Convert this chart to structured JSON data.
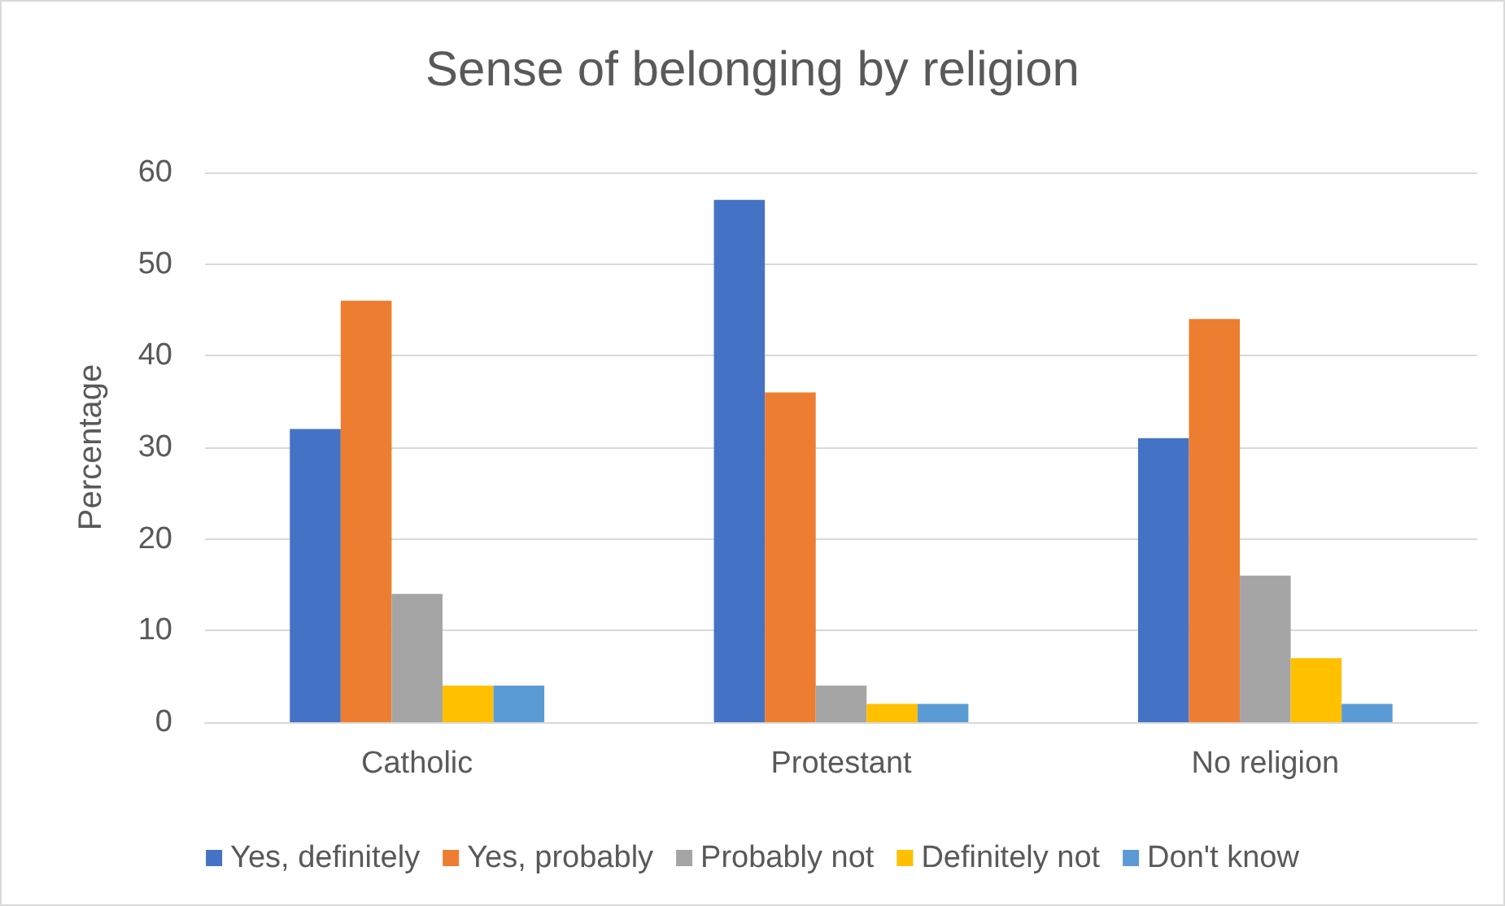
{
  "chart_data": {
    "type": "bar",
    "title": "Sense of belonging by religion",
    "ylabel": "Percentage",
    "categories": [
      "Catholic",
      "Protestant",
      "No religion"
    ],
    "series": [
      {
        "name": "Yes, definitely",
        "color": "#4472c4",
        "values": [
          32,
          57,
          31
        ]
      },
      {
        "name": "Yes, probably",
        "color": "#ed7d31",
        "values": [
          46,
          36,
          44
        ]
      },
      {
        "name": "Probably not",
        "color": "#a5a5a5",
        "values": [
          14,
          4,
          16
        ]
      },
      {
        "name": "Definitely not",
        "color": "#ffc000",
        "values": [
          4,
          2,
          7
        ]
      },
      {
        "name": "Don't know",
        "color": "#5b9bd5",
        "values": [
          4,
          2,
          2
        ]
      }
    ],
    "ylim": [
      0,
      60
    ],
    "yticks": [
      0,
      10,
      20,
      30,
      40,
      50,
      60
    ],
    "grid": "y",
    "legend": "bottom"
  }
}
